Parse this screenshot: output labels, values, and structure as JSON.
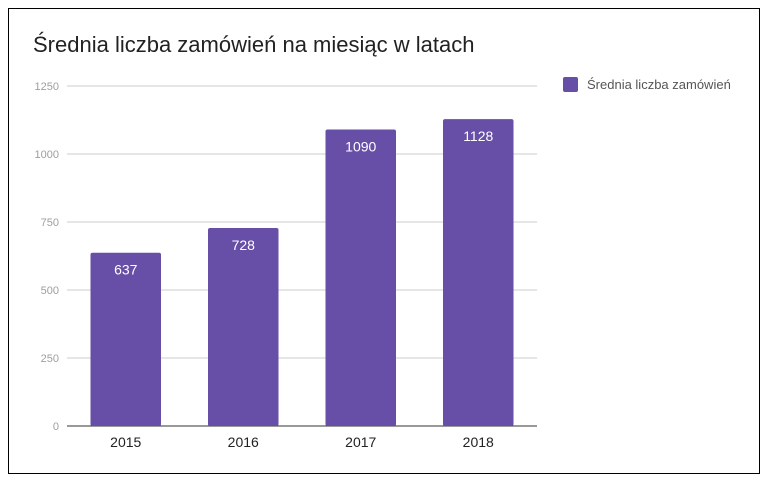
{
  "chart_data": {
    "type": "bar",
    "title": "Średnia liczba zamówień na miesiąc w latach",
    "categories": [
      "2015",
      "2016",
      "2017",
      "2018"
    ],
    "series": [
      {
        "name": "Średnia liczba zamówień",
        "values": [
          637,
          728,
          1090,
          1128
        ],
        "color": "#674ea7"
      }
    ],
    "data_labels": [
      "637",
      "728",
      "1090",
      "1128"
    ],
    "ylim": [
      0,
      1250
    ],
    "yticks": [
      0,
      250,
      500,
      750,
      1000,
      1250
    ],
    "grid": true,
    "legend_position": "right-top",
    "gridline_color": "#cccccc",
    "axis_color": "#333333"
  }
}
